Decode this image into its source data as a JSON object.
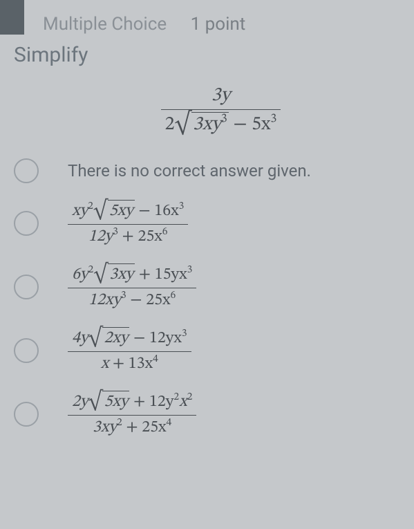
{
  "header": {
    "type": "Multiple Choice",
    "points": "1 point"
  },
  "prompt": "Simplify",
  "expression": {
    "numerator": "3y",
    "denom_coeff1": "2",
    "denom_rad": "3xy",
    "denom_rad_exp": "3",
    "denom_tail": " − 5x",
    "denom_tail_exp": "3"
  },
  "options": [
    {
      "kind": "text",
      "text": "There is no correct answer given."
    },
    {
      "kind": "frac",
      "num_pre": "xy",
      "num_pre_exp": "2",
      "num_rad": "5xy",
      "num_post": " − 16x",
      "num_post_exp": "3",
      "den_a": "12y",
      "den_a_exp": "3",
      "den_op": " + 25x",
      "den_b_exp": "6"
    },
    {
      "kind": "frac",
      "num_pre": "6y",
      "num_pre_exp": "2",
      "num_rad": "3xy",
      "num_post": " + 15yx",
      "num_post_exp": "3",
      "den_a": "12xy",
      "den_a_exp": "3",
      "den_op": " − 25x",
      "den_b_exp": "6"
    },
    {
      "kind": "frac",
      "num_pre": "4y",
      "num_pre_exp": "",
      "num_rad": "2xy",
      "num_post": " − 12yx",
      "num_post_exp": "3",
      "den_a": "x",
      "den_a_exp": "",
      "den_op": " + 13x",
      "den_b_exp": "4"
    },
    {
      "kind": "frac",
      "num_pre": "2y",
      "num_pre_exp": "",
      "num_rad": "5xy",
      "num_post": " + 12y",
      "num_post_exp": "2",
      "num_extra": "x",
      "num_extra_exp": "2",
      "den_a": "3xy",
      "den_a_exp": "2",
      "den_op": " + 25x",
      "den_b_exp": "4"
    }
  ]
}
